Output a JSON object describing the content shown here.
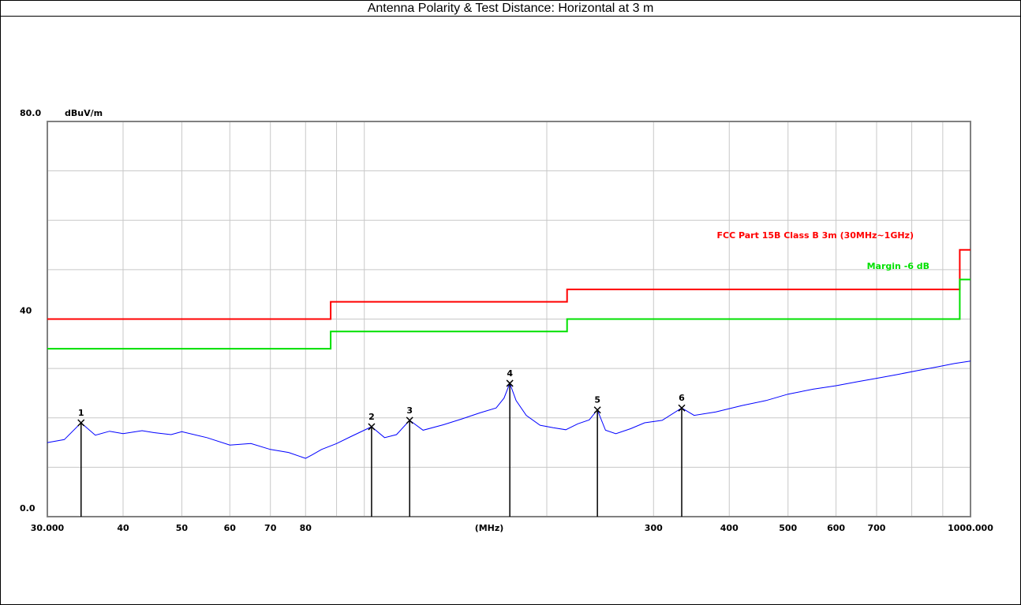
{
  "chart_data": {
    "type": "line",
    "title": "Antenna Polarity & Test Distance: Horizontal at 3 m",
    "y_unit": "dBuV/m",
    "x_label": "(MHz)",
    "xlog": true,
    "xlim": [
      30,
      1000
    ],
    "ylim": [
      0,
      80
    ],
    "xticks": [
      {
        "value": 30,
        "label": "30.000"
      },
      40,
      50,
      60,
      70,
      80,
      300,
      400,
      500,
      600,
      700,
      {
        "value": 1000,
        "label": "1000.000"
      }
    ],
    "xgrid": [
      40,
      50,
      60,
      70,
      80,
      90,
      100,
      200,
      300,
      400,
      500,
      600,
      700,
      800,
      900
    ],
    "yticks": [
      {
        "value": 0,
        "label": "0.0"
      },
      40,
      {
        "value": 80,
        "label": "80.0"
      }
    ],
    "ygrid": [
      10,
      20,
      30,
      40,
      50,
      60,
      70
    ],
    "series": [
      {
        "color": "#0000ff",
        "x": [
          30,
          32,
          34.1,
          36,
          38,
          40,
          43,
          45,
          48,
          50,
          55,
          60,
          65,
          70,
          75,
          80,
          82,
          85,
          90,
          95,
          102.8,
          108,
          113,
          118.8,
          125,
          135,
          145,
          155,
          165,
          170,
          173.8,
          178,
          185,
          195,
          205,
          215,
          225,
          235,
          242.4,
          250,
          260,
          275,
          290,
          310,
          333.9,
          350,
          380,
          420,
          460,
          500,
          550,
          600,
          650,
          700,
          760,
          820,
          880,
          940,
          1000
        ],
        "values": [
          15.0,
          15.6,
          19.0,
          16.5,
          17.3,
          16.8,
          17.4,
          17.0,
          16.6,
          17.2,
          16.0,
          14.5,
          14.8,
          13.6,
          13.0,
          11.8,
          12.5,
          13.6,
          14.8,
          16.2,
          18.2,
          16.0,
          16.6,
          19.5,
          17.5,
          18.6,
          19.8,
          21.0,
          22.0,
          24.0,
          27.0,
          23.5,
          20.5,
          18.5,
          18.0,
          17.6,
          18.8,
          19.6,
          21.6,
          17.5,
          16.8,
          17.8,
          19.0,
          19.5,
          22.0,
          20.5,
          21.2,
          22.5,
          23.5,
          24.8,
          25.8,
          26.5,
          27.3,
          28.0,
          28.8,
          29.6,
          30.3,
          31.0,
          31.5
        ]
      },
      {
        "name": "FCC Part 15B Class B 3m (30MHz~1GHz)",
        "color": "#ff0000",
        "x": [
          30,
          88,
          88,
          216,
          216,
          960,
          960,
          1000
        ],
        "values": [
          40,
          40,
          43.5,
          43.5,
          46,
          46,
          54,
          54
        ]
      },
      {
        "name": "Margin -6 dB",
        "color": "#00e000",
        "x": [
          30,
          88,
          88,
          216,
          216,
          960,
          960,
          1000
        ],
        "values": [
          34,
          34,
          37.5,
          37.5,
          40,
          40,
          48,
          48
        ]
      }
    ],
    "markers": [
      {
        "label": "1",
        "x": 34.1,
        "value": 19.0
      },
      {
        "label": "2",
        "x": 102.8,
        "value": 18.2
      },
      {
        "label": "3",
        "x": 118.8,
        "value": 19.5
      },
      {
        "label": "4",
        "x": 173.8,
        "value": 27.0
      },
      {
        "label": "5",
        "x": 242.4,
        "value": 21.6
      },
      {
        "label": "6",
        "x": 333.9,
        "value": 22.0
      }
    ]
  }
}
